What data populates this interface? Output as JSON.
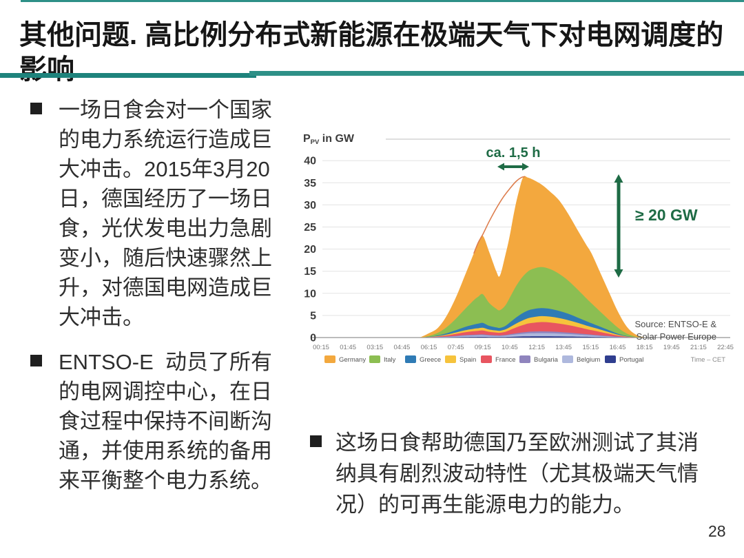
{
  "slide": {
    "title": "其他问题. 高比例分布式新能源在极端天气下对电网调度的影响",
    "page_number": "28",
    "accent_teal": "#2E9087",
    "bullets_left": [
      {
        "text": "一场日食会对一个国家\n的电力系统运行造成巨\n大冲击。2015年3月20\n日，德国经历了一场日\n食，光伏发电出力急剧\n变小，随后快速骤然上\n升，对德国电网造成巨\n大冲击。"
      },
      {
        "text": "ENTSO-E  动员了所有\n的电网调控中心，在日\n食过程中保持不间断沟\n通，并使用系统的备用\n来平衡整个电力系统。"
      }
    ],
    "bullet_bottom": {
      "text": "这场日食帮助德国乃至欧洲测试了其消\n纳具有剧烈波动特性（尤其极端天气情\n况）的可再生能源电力的能力。"
    }
  },
  "chart_data": {
    "type": "area",
    "stacked": true,
    "ylabel": {
      "main": "P",
      "sub": "PV",
      "rest": " in GW"
    },
    "ylim": [
      0,
      40
    ],
    "yticks": [
      0,
      5,
      10,
      15,
      20,
      25,
      30,
      35,
      40
    ],
    "xtick_labels": [
      "00:15",
      "01:45",
      "03:15",
      "04:45",
      "06:15",
      "07:45",
      "09:15",
      "10:45",
      "12:15",
      "13:45",
      "15:15",
      "16:45",
      "18:15",
      "19:45",
      "21:15",
      "22:45"
    ],
    "time_axis_label": "Time – CET",
    "x_hours": [
      5.75,
      6.25,
      6.75,
      7.25,
      7.75,
      8.25,
      8.75,
      9.0,
      9.25,
      9.6,
      10.0,
      10.2,
      10.5,
      10.75,
      11.0,
      11.25,
      11.5,
      11.75,
      12.0,
      12.5,
      13.0,
      13.5,
      14.0,
      14.5,
      15.0,
      15.3,
      15.75,
      16.25,
      16.75,
      17.25,
      17.75,
      18.25
    ],
    "series": [
      {
        "name": "Portugal",
        "color": "#2F3E8F",
        "values": [
          0,
          0.01,
          0.02,
          0.05,
          0.08,
          0.12,
          0.14,
          0.15,
          0.16,
          0.13,
          0.12,
          0.11,
          0.13,
          0.16,
          0.2,
          0.23,
          0.26,
          0.28,
          0.29,
          0.3,
          0.29,
          0.27,
          0.24,
          0.2,
          0.17,
          0.14,
          0.11,
          0.07,
          0.04,
          0.01,
          0,
          0
        ]
      },
      {
        "name": "Belgium",
        "color": "#AEB8DD",
        "values": [
          0,
          0.02,
          0.06,
          0.12,
          0.2,
          0.28,
          0.33,
          0.35,
          0.36,
          0.3,
          0.26,
          0.25,
          0.3,
          0.38,
          0.46,
          0.54,
          0.6,
          0.65,
          0.68,
          0.7,
          0.68,
          0.63,
          0.56,
          0.48,
          0.39,
          0.34,
          0.26,
          0.18,
          0.09,
          0.03,
          0,
          0
        ]
      },
      {
        "name": "Bulgaria",
        "color": "#8F84BD",
        "values": [
          0,
          0.01,
          0.03,
          0.06,
          0.1,
          0.14,
          0.17,
          0.18,
          0.19,
          0.16,
          0.14,
          0.13,
          0.15,
          0.2,
          0.25,
          0.29,
          0.33,
          0.36,
          0.38,
          0.4,
          0.39,
          0.36,
          0.32,
          0.27,
          0.22,
          0.19,
          0.15,
          0.1,
          0.05,
          0.02,
          0,
          0
        ]
      },
      {
        "name": "France",
        "color": "#E85560",
        "values": [
          0,
          0.04,
          0.12,
          0.25,
          0.45,
          0.65,
          0.8,
          0.85,
          0.9,
          0.72,
          0.62,
          0.6,
          0.72,
          0.95,
          1.2,
          1.45,
          1.65,
          1.85,
          1.95,
          2.1,
          2.05,
          1.9,
          1.7,
          1.45,
          1.15,
          1.0,
          0.78,
          0.52,
          0.28,
          0.1,
          0.02,
          0
        ]
      },
      {
        "name": "Spain",
        "color": "#F6C33C",
        "values": [
          0,
          0.03,
          0.1,
          0.2,
          0.32,
          0.45,
          0.55,
          0.58,
          0.6,
          0.5,
          0.45,
          0.44,
          0.52,
          0.65,
          0.8,
          0.95,
          1.1,
          1.2,
          1.28,
          1.35,
          1.32,
          1.25,
          1.12,
          0.97,
          0.8,
          0.7,
          0.55,
          0.38,
          0.2,
          0.08,
          0.02,
          0
        ]
      },
      {
        "name": "Greece",
        "color": "#2F7BB5",
        "values": [
          0,
          0.05,
          0.15,
          0.3,
          0.5,
          0.75,
          0.95,
          1.05,
          1.1,
          0.85,
          0.7,
          0.65,
          0.8,
          1.05,
          1.3,
          1.5,
          1.65,
          1.75,
          1.8,
          1.8,
          1.75,
          1.6,
          1.45,
          1.2,
          1.0,
          0.85,
          0.65,
          0.45,
          0.25,
          0.1,
          0.02,
          0
        ]
      },
      {
        "name": "Italy",
        "color": "#8CBE52",
        "values": [
          0,
          0.2,
          0.6,
          1.4,
          2.6,
          4.0,
          5.5,
          6.1,
          6.5,
          5.2,
          4.2,
          4.0,
          4.6,
          5.6,
          6.7,
          7.6,
          8.3,
          8.8,
          9.1,
          9.3,
          9.0,
          8.4,
          7.5,
          6.4,
          5.2,
          4.5,
          3.5,
          2.4,
          1.4,
          0.6,
          0.15,
          0
        ]
      },
      {
        "name": "Germany",
        "color": "#F3A83E",
        "values": [
          0,
          0.6,
          1.1,
          2.6,
          4.8,
          7.6,
          10.6,
          12.2,
          13.2,
          11.6,
          8.5,
          7.8,
          11.3,
          14.0,
          17.6,
          20.4,
          22.4,
          21.3,
          20.3,
          18.7,
          17.5,
          16.6,
          15.1,
          13.5,
          12.1,
          11.3,
          9.0,
          6.4,
          3.7,
          1.6,
          0.5,
          0
        ]
      }
    ],
    "legend_order": [
      "Germany",
      "Italy",
      "Greece",
      "Spain",
      "France",
      "Bulgaria",
      "Belgium",
      "Portugal"
    ],
    "expected_line": {
      "color": "#DD7D4D",
      "x": [
        8.75,
        9.0,
        9.25,
        9.6,
        10.0,
        10.4,
        10.8,
        11.1,
        11.4,
        11.6
      ],
      "y": [
        19,
        21.5,
        23.3,
        26.2,
        29.2,
        31.8,
        33.9,
        35.3,
        36.2,
        36.4
      ]
    },
    "annotations": {
      "duration_label": "ca. 1,5 h",
      "magnitude_label": "≥ 20 GW",
      "accent_color": "#1E6B45",
      "source": [
        "Source: ENTSO-E &",
        "Solar Power Europe"
      ]
    }
  }
}
